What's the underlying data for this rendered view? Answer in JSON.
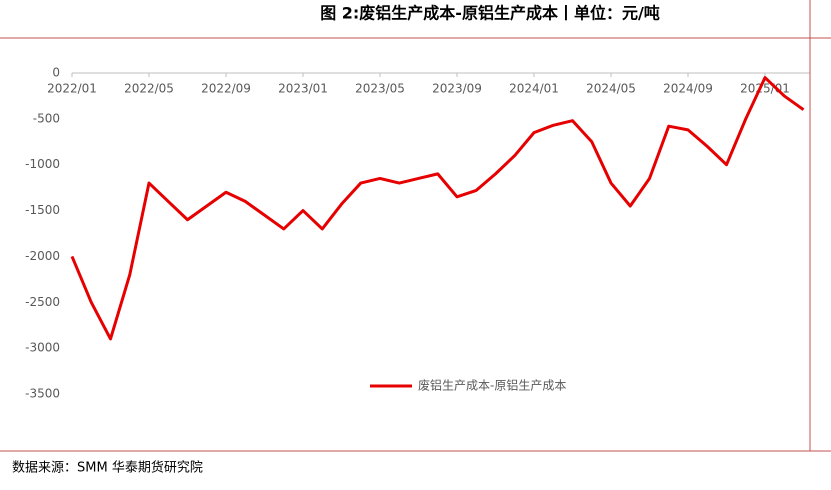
{
  "title": "图 2:废铝生产成本-原铝生产成本丨单位：元/吨",
  "source": "数据来源：SMM 华泰期货研究院",
  "chart_data": {
    "type": "line",
    "x": [
      "2022/01",
      null,
      null,
      null,
      "2022/05",
      null,
      null,
      null,
      "2022/09",
      null,
      null,
      null,
      "2023/01",
      null,
      null,
      null,
      "2023/05",
      null,
      null,
      null,
      "2023/09",
      null,
      null,
      null,
      "2024/01",
      null,
      null,
      null,
      "2024/05",
      null,
      null,
      null,
      "2024/09",
      null,
      null,
      null,
      "2025/01",
      null,
      null
    ],
    "series": [
      {
        "name": "废铝生产成本-原铝生产成本",
        "color": "#e60000",
        "values": [
          -2000,
          -2500,
          -2900,
          -2200,
          -1200,
          -1400,
          -1600,
          -1450,
          -1300,
          -1400,
          -1550,
          -1700,
          -1500,
          -1700,
          -1430,
          -1200,
          -1150,
          -1200,
          -1150,
          -1100,
          -1350,
          -1280,
          -1100,
          -900,
          -650,
          -570,
          -520,
          -750,
          -1200,
          -1450,
          -1150,
          -580,
          -620,
          -800,
          -1000,
          -500,
          -50,
          -250,
          -400
        ]
      }
    ],
    "ylim": [
      -3500,
      0
    ],
    "yticks": [
      0,
      -500,
      -1000,
      -1500,
      -2000,
      -2500,
      -3000,
      -3500
    ],
    "grid": false,
    "legend": "bottom-right"
  }
}
